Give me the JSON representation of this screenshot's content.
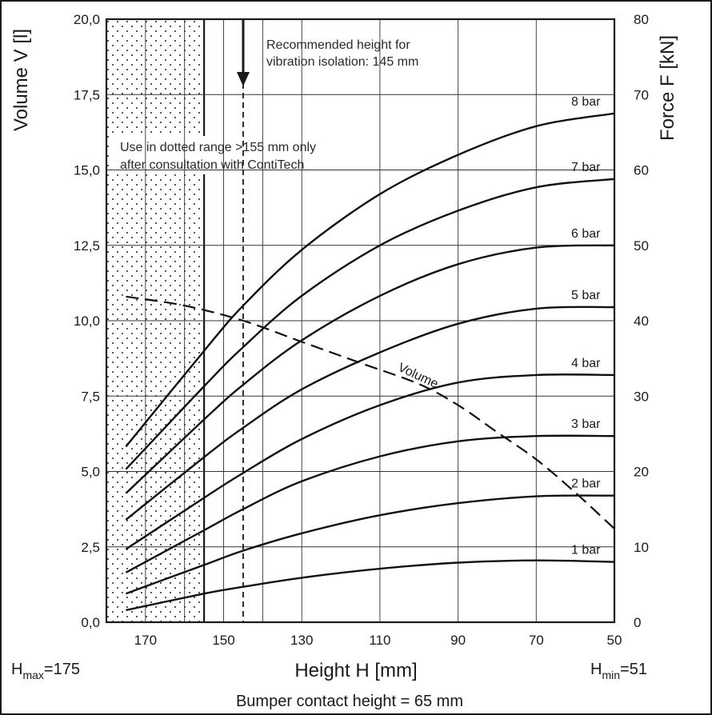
{
  "chart_data": {
    "type": "line",
    "xlabel": "Height H [mm]",
    "ylabel_left": "Volume V [l]",
    "ylabel_right": "Force F [kN]",
    "x_reversed": true,
    "xlim": [
      180,
      50
    ],
    "ylim_left": [
      0,
      20
    ],
    "ylim_right": [
      0,
      80
    ],
    "x_ticks": [
      170,
      150,
      130,
      110,
      90,
      70,
      50
    ],
    "x_minor_grid": [
      160,
      140
    ],
    "y_left_ticks": [
      "0,0",
      "2,5",
      "5,0",
      "7,5",
      "10,0",
      "12,5",
      "15,0",
      "17,5",
      "20,0"
    ],
    "y_right_ticks": [
      "0",
      "10",
      "20",
      "30",
      "40",
      "50",
      "60",
      "70",
      "80"
    ],
    "grid": true,
    "series": [
      {
        "name": "1 bar",
        "axis": "right",
        "x": [
          175,
          155,
          145,
          130,
          110,
          90,
          70,
          50
        ],
        "y": [
          1.6,
          3.8,
          4.7,
          5.9,
          7.1,
          7.9,
          8.2,
          8.0
        ]
      },
      {
        "name": "2 bar",
        "axis": "right",
        "x": [
          175,
          155,
          145,
          130,
          110,
          90,
          70,
          50
        ],
        "y": [
          3.8,
          7.6,
          9.5,
          11.8,
          14.2,
          15.8,
          16.7,
          16.8
        ]
      },
      {
        "name": "3 bar",
        "axis": "right",
        "x": [
          175,
          155,
          145,
          130,
          110,
          90,
          70,
          50
        ],
        "y": [
          6.6,
          12.2,
          15.0,
          18.7,
          22.0,
          24.0,
          24.7,
          24.7
        ]
      },
      {
        "name": "4 bar",
        "axis": "right",
        "x": [
          175,
          155,
          145,
          130,
          110,
          90,
          70,
          50
        ],
        "y": [
          9.7,
          16.5,
          19.8,
          24.3,
          28.8,
          31.8,
          32.8,
          32.8
        ]
      },
      {
        "name": "5 bar",
        "axis": "right",
        "x": [
          175,
          155,
          145,
          130,
          110,
          90,
          70,
          50
        ],
        "y": [
          13.6,
          21.9,
          25.8,
          30.9,
          35.8,
          39.6,
          41.6,
          41.8
        ]
      },
      {
        "name": "6 bar",
        "axis": "right",
        "x": [
          175,
          155,
          145,
          130,
          110,
          90,
          70,
          50
        ],
        "y": [
          17.1,
          26.9,
          31.5,
          37.4,
          43.3,
          47.5,
          49.7,
          50.0
        ]
      },
      {
        "name": "7 bar",
        "axis": "right",
        "x": [
          175,
          155,
          145,
          130,
          110,
          90,
          70,
          50
        ],
        "y": [
          20.3,
          31.3,
          36.5,
          43.3,
          50.0,
          54.6,
          57.7,
          58.8
        ]
      },
      {
        "name": "8 bar",
        "axis": "right",
        "x": [
          175,
          155,
          145,
          130,
          110,
          90,
          70,
          50
        ],
        "y": [
          23.3,
          36.0,
          42.0,
          49.4,
          56.8,
          62.0,
          65.8,
          67.5
        ]
      },
      {
        "name": "Volume",
        "axis": "left",
        "dashed": true,
        "x": [
          175,
          160,
          145,
          130,
          115,
          100,
          90,
          80,
          70,
          60,
          50
        ],
        "y": [
          10.8,
          10.5,
          10.0,
          9.3,
          8.6,
          7.9,
          7.2,
          6.3,
          5.4,
          4.3,
          3.1
        ]
      }
    ],
    "annotations": {
      "recommended_line1": "Recommended height for",
      "recommended_line2": "vibration isolation: 145 mm",
      "recommended_x": 145,
      "dotted_line1": "Use in dotted range >155 mm only",
      "dotted_line2": "after consultation with ContiTech",
      "dotted_range": [
        180,
        155
      ],
      "hmax": {
        "main": "H",
        "sub": "max",
        "value": "=175"
      },
      "hmin": {
        "main": "H",
        "sub": "min",
        "value": "=51"
      },
      "bumper": "Bumper contact height = 65 mm"
    }
  }
}
